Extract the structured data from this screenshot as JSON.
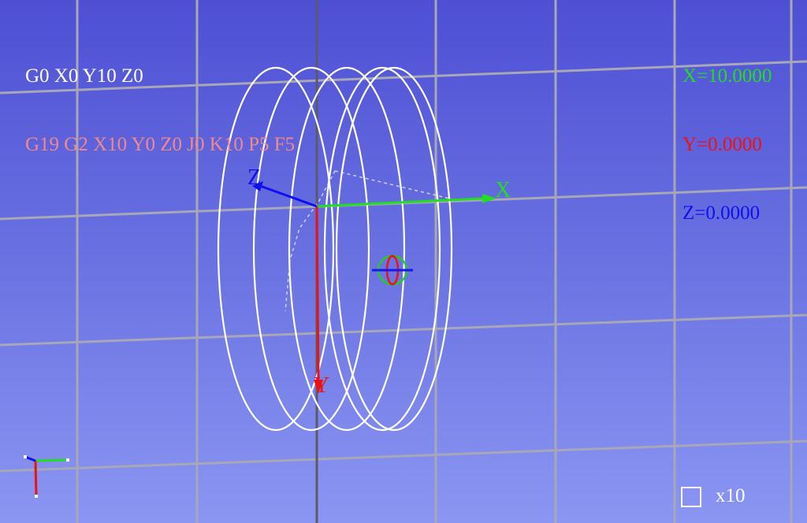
{
  "gcode": {
    "line1": "G0 X0 Y10 Z0",
    "line2": "G19 G2 X10 Y0 Z0 J0 K10 P5 F5"
  },
  "position": {
    "x": "X=10.0000",
    "y": "Y=0.0000",
    "z": "Z=0.0000"
  },
  "axes": {
    "x": "X",
    "y": "Y",
    "z": "Z"
  },
  "zoom": {
    "label": "x10"
  },
  "colors": {
    "background_top": "#4e4fd4",
    "background_bottom": "#8b96f2",
    "x_axis": "#22dd22",
    "y_axis": "#ff0000",
    "z_axis": "#1010ee",
    "path": "#ffffff",
    "grid": "#aaaaaa"
  },
  "icons": {
    "tool": "tool-marker-icon",
    "orientation": "orientation-triad-icon",
    "zoom": "zoom-box-icon"
  }
}
